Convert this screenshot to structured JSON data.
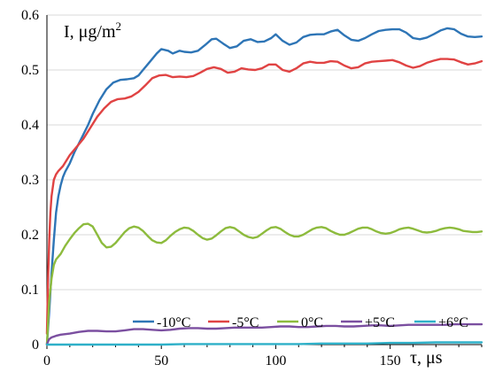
{
  "chart_data": {
    "type": "line",
    "title": "",
    "xlabel": "τ, μs",
    "ylabel": "I, μg/m",
    "ylabel_sup": "2",
    "xlim": [
      0,
      190
    ],
    "ylim": [
      0,
      0.6
    ],
    "x_ticks": [
      0,
      50,
      100,
      150
    ],
    "y_ticks": [
      0,
      0.1,
      0.2,
      0.3,
      0.4,
      0.5,
      0.6
    ],
    "y_tick_labels": [
      "0",
      "0.1",
      "0.2",
      "0.3",
      "0.4",
      "0.5",
      "0.6"
    ],
    "grid": "horizontal",
    "legend_position": "bottom-right",
    "series": [
      {
        "name": "-10°C",
        "color": "#2e75b6",
        "points": [
          [
            0,
            0
          ],
          [
            1,
            0.06
          ],
          [
            2,
            0.13
          ],
          [
            3,
            0.19
          ],
          [
            4,
            0.24
          ],
          [
            5,
            0.27
          ],
          [
            6,
            0.29
          ],
          [
            7,
            0.305
          ],
          [
            8,
            0.315
          ],
          [
            10,
            0.33
          ],
          [
            12,
            0.35
          ],
          [
            15,
            0.375
          ],
          [
            18,
            0.4
          ],
          [
            20,
            0.42
          ],
          [
            23,
            0.445
          ],
          [
            26,
            0.465
          ],
          [
            29,
            0.477
          ],
          [
            32,
            0.482
          ],
          [
            35,
            0.483
          ],
          [
            38,
            0.485
          ],
          [
            40,
            0.49
          ],
          [
            42,
            0.5
          ],
          [
            45,
            0.515
          ],
          [
            48,
            0.53
          ],
          [
            50,
            0.538
          ],
          [
            53,
            0.535
          ],
          [
            55,
            0.53
          ],
          [
            58,
            0.535
          ],
          [
            60,
            0.533
          ],
          [
            63,
            0.532
          ],
          [
            66,
            0.535
          ],
          [
            69,
            0.545
          ],
          [
            72,
            0.556
          ],
          [
            74,
            0.557
          ],
          [
            77,
            0.548
          ],
          [
            80,
            0.54
          ],
          [
            83,
            0.543
          ],
          [
            86,
            0.553
          ],
          [
            89,
            0.556
          ],
          [
            92,
            0.551
          ],
          [
            95,
            0.552
          ],
          [
            98,
            0.558
          ],
          [
            100,
            0.565
          ],
          [
            103,
            0.553
          ],
          [
            106,
            0.546
          ],
          [
            109,
            0.55
          ],
          [
            112,
            0.56
          ],
          [
            115,
            0.564
          ],
          [
            118,
            0.565
          ],
          [
            121,
            0.565
          ],
          [
            124,
            0.57
          ],
          [
            127,
            0.573
          ],
          [
            130,
            0.563
          ],
          [
            133,
            0.555
          ],
          [
            136,
            0.553
          ],
          [
            139,
            0.558
          ],
          [
            142,
            0.565
          ],
          [
            145,
            0.571
          ],
          [
            148,
            0.573
          ],
          [
            151,
            0.574
          ],
          [
            154,
            0.574
          ],
          [
            157,
            0.568
          ],
          [
            160,
            0.558
          ],
          [
            163,
            0.556
          ],
          [
            166,
            0.559
          ],
          [
            169,
            0.565
          ],
          [
            172,
            0.572
          ],
          [
            175,
            0.576
          ],
          [
            178,
            0.574
          ],
          [
            181,
            0.566
          ],
          [
            184,
            0.561
          ],
          [
            187,
            0.56
          ],
          [
            190,
            0.561
          ]
        ]
      },
      {
        "name": "-5°C",
        "color": "#e04343",
        "points": [
          [
            0,
            0.02
          ],
          [
            0.5,
            0.12
          ],
          [
            1,
            0.19
          ],
          [
            1.5,
            0.24
          ],
          [
            2,
            0.27
          ],
          [
            3,
            0.3
          ],
          [
            4,
            0.31
          ],
          [
            5,
            0.316
          ],
          [
            7,
            0.325
          ],
          [
            10,
            0.345
          ],
          [
            13,
            0.36
          ],
          [
            16,
            0.375
          ],
          [
            19,
            0.395
          ],
          [
            22,
            0.415
          ],
          [
            25,
            0.43
          ],
          [
            28,
            0.442
          ],
          [
            31,
            0.447
          ],
          [
            34,
            0.448
          ],
          [
            37,
            0.452
          ],
          [
            40,
            0.46
          ],
          [
            43,
            0.472
          ],
          [
            46,
            0.485
          ],
          [
            49,
            0.49
          ],
          [
            52,
            0.491
          ],
          [
            55,
            0.487
          ],
          [
            58,
            0.488
          ],
          [
            61,
            0.487
          ],
          [
            64,
            0.489
          ],
          [
            67,
            0.495
          ],
          [
            70,
            0.502
          ],
          [
            73,
            0.505
          ],
          [
            76,
            0.502
          ],
          [
            79,
            0.495
          ],
          [
            82,
            0.497
          ],
          [
            85,
            0.503
          ],
          [
            88,
            0.501
          ],
          [
            91,
            0.5
          ],
          [
            94,
            0.503
          ],
          [
            97,
            0.51
          ],
          [
            100,
            0.51
          ],
          [
            103,
            0.5
          ],
          [
            106,
            0.497
          ],
          [
            109,
            0.503
          ],
          [
            112,
            0.512
          ],
          [
            115,
            0.515
          ],
          [
            118,
            0.513
          ],
          [
            121,
            0.513
          ],
          [
            124,
            0.516
          ],
          [
            127,
            0.515
          ],
          [
            130,
            0.508
          ],
          [
            133,
            0.503
          ],
          [
            136,
            0.505
          ],
          [
            139,
            0.512
          ],
          [
            142,
            0.515
          ],
          [
            145,
            0.516
          ],
          [
            148,
            0.517
          ],
          [
            151,
            0.518
          ],
          [
            154,
            0.514
          ],
          [
            157,
            0.508
          ],
          [
            160,
            0.504
          ],
          [
            163,
            0.507
          ],
          [
            166,
            0.513
          ],
          [
            169,
            0.517
          ],
          [
            172,
            0.52
          ],
          [
            175,
            0.52
          ],
          [
            178,
            0.519
          ],
          [
            181,
            0.514
          ],
          [
            184,
            0.51
          ],
          [
            187,
            0.512
          ],
          [
            190,
            0.516
          ]
        ]
      },
      {
        "name": "0°C",
        "color": "#8dbb3d",
        "points": [
          [
            0,
            0
          ],
          [
            1,
            0.08
          ],
          [
            2,
            0.12
          ],
          [
            3,
            0.145
          ],
          [
            4,
            0.155
          ],
          [
            6,
            0.165
          ],
          [
            8,
            0.18
          ],
          [
            10,
            0.192
          ],
          [
            12,
            0.203
          ],
          [
            14,
            0.212
          ],
          [
            16,
            0.219
          ],
          [
            18,
            0.22
          ],
          [
            20,
            0.215
          ],
          [
            22,
            0.2
          ],
          [
            24,
            0.185
          ],
          [
            26,
            0.177
          ],
          [
            28,
            0.178
          ],
          [
            30,
            0.185
          ],
          [
            32,
            0.195
          ],
          [
            34,
            0.205
          ],
          [
            36,
            0.212
          ],
          [
            38,
            0.215
          ],
          [
            40,
            0.213
          ],
          [
            42,
            0.207
          ],
          [
            44,
            0.198
          ],
          [
            46,
            0.19
          ],
          [
            48,
            0.186
          ],
          [
            50,
            0.185
          ],
          [
            52,
            0.19
          ],
          [
            54,
            0.198
          ],
          [
            56,
            0.205
          ],
          [
            58,
            0.21
          ],
          [
            60,
            0.213
          ],
          [
            62,
            0.212
          ],
          [
            64,
            0.207
          ],
          [
            66,
            0.2
          ],
          [
            68,
            0.194
          ],
          [
            70,
            0.191
          ],
          [
            72,
            0.193
          ],
          [
            74,
            0.199
          ],
          [
            76,
            0.206
          ],
          [
            78,
            0.212
          ],
          [
            80,
            0.214
          ],
          [
            82,
            0.212
          ],
          [
            84,
            0.206
          ],
          [
            86,
            0.2
          ],
          [
            88,
            0.196
          ],
          [
            90,
            0.194
          ],
          [
            92,
            0.196
          ],
          [
            94,
            0.202
          ],
          [
            96,
            0.208
          ],
          [
            98,
            0.213
          ],
          [
            100,
            0.214
          ],
          [
            102,
            0.211
          ],
          [
            104,
            0.205
          ],
          [
            106,
            0.2
          ],
          [
            108,
            0.197
          ],
          [
            110,
            0.197
          ],
          [
            112,
            0.2
          ],
          [
            114,
            0.205
          ],
          [
            116,
            0.21
          ],
          [
            118,
            0.213
          ],
          [
            120,
            0.214
          ],
          [
            122,
            0.212
          ],
          [
            124,
            0.207
          ],
          [
            126,
            0.203
          ],
          [
            128,
            0.2
          ],
          [
            130,
            0.2
          ],
          [
            132,
            0.203
          ],
          [
            134,
            0.207
          ],
          [
            136,
            0.211
          ],
          [
            138,
            0.213
          ],
          [
            140,
            0.213
          ],
          [
            142,
            0.21
          ],
          [
            144,
            0.206
          ],
          [
            146,
            0.203
          ],
          [
            148,
            0.202
          ],
          [
            150,
            0.203
          ],
          [
            152,
            0.206
          ],
          [
            154,
            0.21
          ],
          [
            156,
            0.212
          ],
          [
            158,
            0.213
          ],
          [
            160,
            0.211
          ],
          [
            162,
            0.208
          ],
          [
            164,
            0.205
          ],
          [
            166,
            0.204
          ],
          [
            168,
            0.205
          ],
          [
            170,
            0.207
          ],
          [
            172,
            0.21
          ],
          [
            174,
            0.212
          ],
          [
            176,
            0.213
          ],
          [
            178,
            0.212
          ],
          [
            180,
            0.21
          ],
          [
            182,
            0.207
          ],
          [
            184,
            0.206
          ],
          [
            186,
            0.205
          ],
          [
            188,
            0.205
          ],
          [
            190,
            0.206
          ]
        ]
      },
      {
        "name": "+5°C",
        "color": "#7b4fa0",
        "points": [
          [
            0,
            0
          ],
          [
            0.5,
            0.006
          ],
          [
            1,
            0.01
          ],
          [
            2,
            0.013
          ],
          [
            4,
            0.016
          ],
          [
            6,
            0.018
          ],
          [
            8,
            0.019
          ],
          [
            10,
            0.02
          ],
          [
            14,
            0.023
          ],
          [
            18,
            0.025
          ],
          [
            22,
            0.025
          ],
          [
            26,
            0.024
          ],
          [
            30,
            0.024
          ],
          [
            34,
            0.026
          ],
          [
            38,
            0.028
          ],
          [
            42,
            0.028
          ],
          [
            46,
            0.027
          ],
          [
            50,
            0.026
          ],
          [
            54,
            0.027
          ],
          [
            58,
            0.029
          ],
          [
            62,
            0.03
          ],
          [
            66,
            0.03
          ],
          [
            70,
            0.029
          ],
          [
            74,
            0.029
          ],
          [
            78,
            0.03
          ],
          [
            82,
            0.031
          ],
          [
            86,
            0.031
          ],
          [
            90,
            0.031
          ],
          [
            94,
            0.031
          ],
          [
            98,
            0.032
          ],
          [
            102,
            0.033
          ],
          [
            106,
            0.033
          ],
          [
            110,
            0.032
          ],
          [
            114,
            0.032
          ],
          [
            118,
            0.033
          ],
          [
            122,
            0.034
          ],
          [
            126,
            0.034
          ],
          [
            130,
            0.033
          ],
          [
            134,
            0.033
          ],
          [
            138,
            0.034
          ],
          [
            142,
            0.035
          ],
          [
            146,
            0.035
          ],
          [
            150,
            0.034
          ],
          [
            154,
            0.035
          ],
          [
            158,
            0.036
          ],
          [
            162,
            0.036
          ],
          [
            166,
            0.036
          ],
          [
            170,
            0.036
          ],
          [
            174,
            0.036
          ],
          [
            178,
            0.037
          ],
          [
            182,
            0.037
          ],
          [
            186,
            0.037
          ],
          [
            190,
            0.037
          ]
        ]
      },
      {
        "name": "+6°C",
        "color": "#2eb0c8",
        "points": [
          [
            0,
            0
          ],
          [
            10,
            0
          ],
          [
            20,
            0
          ],
          [
            30,
            0
          ],
          [
            40,
            0
          ],
          [
            50,
            0
          ],
          [
            60,
            0.001
          ],
          [
            70,
            0.001
          ],
          [
            80,
            0.001
          ],
          [
            90,
            0.001
          ],
          [
            100,
            0.001
          ],
          [
            110,
            0.001
          ],
          [
            120,
            0.002
          ],
          [
            130,
            0.002
          ],
          [
            140,
            0.002
          ],
          [
            150,
            0.003
          ],
          [
            160,
            0.003
          ],
          [
            170,
            0.004
          ],
          [
            180,
            0.004
          ],
          [
            190,
            0.004
          ]
        ]
      }
    ]
  }
}
